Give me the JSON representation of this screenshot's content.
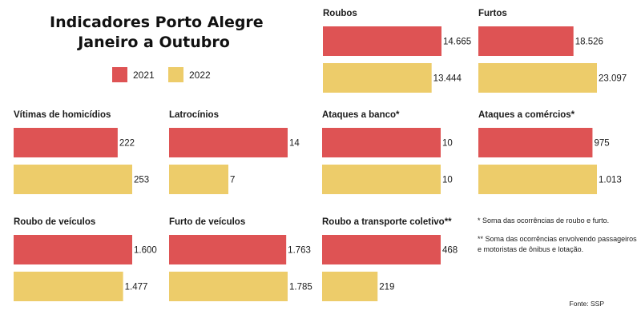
{
  "header": {
    "title_line1": "Indicadores Porto Alegre",
    "title_line2": "Janeiro a Outubro"
  },
  "legend": {
    "items": [
      {
        "label": "2021",
        "color": "#de5354"
      },
      {
        "label": "2022",
        "color": "#edcc6a"
      }
    ]
  },
  "colors": {
    "y2021": "#de5354",
    "y2022": "#edcc6a"
  },
  "notes": {
    "note1": "* Soma das ocorrências de roubo e furto.",
    "note2": "** Soma das ocorrências envolvendo passageiros e motoristas de ônibus e lotação."
  },
  "source": "Fonte: SSP",
  "chart_data": [
    {
      "type": "bar",
      "title": "Roubos",
      "categories": [
        "2021",
        "2022"
      ],
      "values": [
        14665,
        13444
      ],
      "labels": [
        "14.665",
        "13.444"
      ]
    },
    {
      "type": "bar",
      "title": "Furtos",
      "categories": [
        "2021",
        "2022"
      ],
      "values": [
        18526,
        23097
      ],
      "labels": [
        "18.526",
        "23.097"
      ]
    },
    {
      "type": "bar",
      "title": "Vítimas de homicídios",
      "categories": [
        "2021",
        "2022"
      ],
      "values": [
        222,
        253
      ],
      "labels": [
        "222",
        "253"
      ]
    },
    {
      "type": "bar",
      "title": "Latrocínios",
      "categories": [
        "2021",
        "2022"
      ],
      "values": [
        14,
        7
      ],
      "labels": [
        "14",
        "7"
      ]
    },
    {
      "type": "bar",
      "title": "Ataques a banco*",
      "categories": [
        "2021",
        "2022"
      ],
      "values": [
        10,
        10
      ],
      "labels": [
        "10",
        "10"
      ]
    },
    {
      "type": "bar",
      "title": "Ataques a comércios*",
      "categories": [
        "2021",
        "2022"
      ],
      "values": [
        975,
        1013
      ],
      "labels": [
        "975",
        "1.013"
      ]
    },
    {
      "type": "bar",
      "title": "Roubo de veículos",
      "categories": [
        "2021",
        "2022"
      ],
      "values": [
        1600,
        1477
      ],
      "labels": [
        "1.600",
        "1.477"
      ]
    },
    {
      "type": "bar",
      "title": "Furto de veículos",
      "categories": [
        "2021",
        "2022"
      ],
      "values": [
        1763,
        1785
      ],
      "labels": [
        "1.763",
        "1.785"
      ]
    },
    {
      "type": "bar",
      "title": "Roubo a transporte coletivo**",
      "categories": [
        "2021",
        "2022"
      ],
      "values": [
        468,
        219
      ],
      "labels": [
        "468",
        "219"
      ]
    }
  ]
}
